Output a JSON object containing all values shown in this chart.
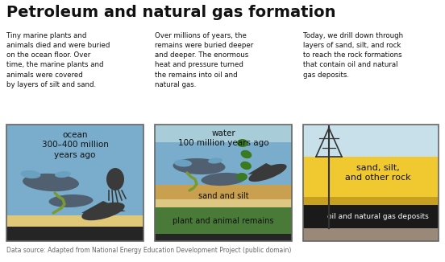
{
  "title": "Petroleum and natural gas formation",
  "title_fontsize": 14,
  "background_color": "#ffffff",
  "source_text": "Data source: Adapted from National Energy Education Development Project (public domain)",
  "desc1": "Tiny marine plants and\nanimals died and were buried\non the ocean floor. Over\ntime, the marine plants and\nanimals were covered\nby layers of silt and sand.",
  "desc2": "Over millions of years, the\nremains were buried deeper\nand deeper. The enormous\nheat and pressure turned\nthe remains into oil and\nnatural gas.",
  "desc3": "Today, we drill down through\nlayers of sand, silt, and rock\nto reach the rock formations\nthat contain oil and natural\ngas deposits.",
  "panel1": {
    "ocean_color": "#7aadcc",
    "sand_color": "#e0c878",
    "rock_color": "#252525",
    "fish_dark": "#506070",
    "fish_blue": "#6aa0c0",
    "ray_color": "#3a3a3a",
    "worm_color": "#7a9a30",
    "label": "ocean\n300–400 million\nyears ago"
  },
  "panel2": {
    "water_color": "#7aadcc",
    "water_light": "#a8ccd8",
    "sand_color": "#c8a050",
    "sand_light": "#dcc882",
    "green_color": "#4a7a38",
    "seaweed_color": "#3a7a20",
    "fish_dark": "#506070",
    "fish_blue": "#6aa0c0",
    "ray_color": "#3a3a3a",
    "worm_color": "#7a9a30",
    "label": "water\n100 million years ago",
    "label2": "sand and silt",
    "label3": "plant and animal remains"
  },
  "panel3": {
    "sky_color": "#c8e0ea",
    "sand_yellow": "#f0c830",
    "sand_dark": "#c8a020",
    "black_color": "#1a1a1a",
    "gray_color": "#9a8878",
    "derrick_color": "#333333",
    "label1": "sand, silt,\nand other rock",
    "label2": "oil and natural gas deposits"
  }
}
